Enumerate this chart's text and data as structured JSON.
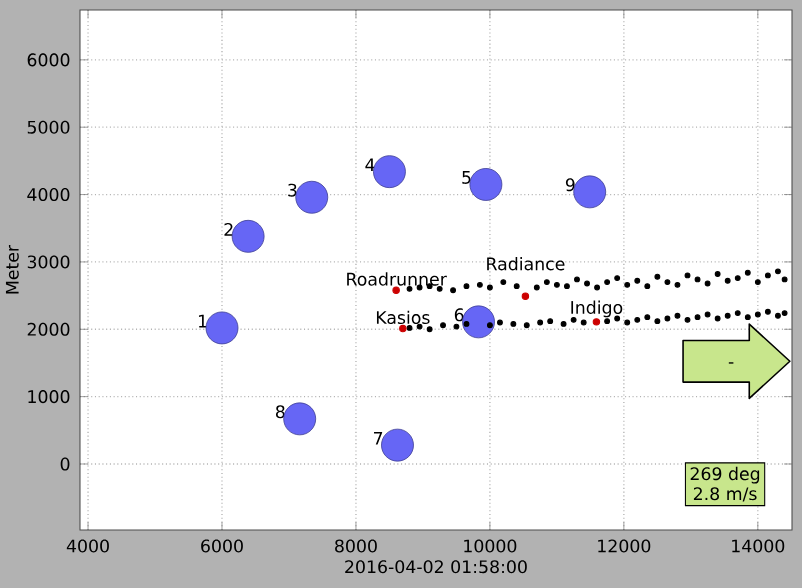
{
  "chart_data": {
    "type": "scatter",
    "xlabel": "2016-04-02 01:58:00",
    "ylabel": "Meter",
    "xlim": [
      3880,
      14510
    ],
    "ylim": [
      -980,
      6740
    ],
    "xticks": [
      4000,
      6000,
      8000,
      10000,
      12000,
      14000
    ],
    "yticks": [
      0,
      1000,
      2000,
      3000,
      4000,
      5000,
      6000
    ],
    "grid": true,
    "marker": "circle",
    "series": [
      {
        "color": "#6666f5",
        "x": [
          6000,
          6390,
          7340,
          8500,
          9940,
          9830,
          8620,
          7160,
          11490
        ],
        "values": [
          2020,
          3380,
          3960,
          4340,
          4150,
          2110,
          280,
          670,
          4040
        ]
      },
      {
        "color": "#000000",
        "x": [
          8800,
          8950,
          9100,
          9250,
          9450,
          9650,
          9850,
          10000,
          10200,
          10400,
          10700,
          10850,
          11000,
          11150,
          11300,
          11450,
          11600,
          11750,
          11900,
          12050,
          12200,
          12350,
          12500,
          12650,
          12800,
          12950,
          13100,
          13250,
          13400,
          13550,
          13700,
          13850,
          14000,
          14150,
          14300,
          14400
        ],
        "values": [
          2600,
          2620,
          2640,
          2600,
          2580,
          2640,
          2660,
          2620,
          2700,
          2640,
          2620,
          2700,
          2660,
          2640,
          2740,
          2680,
          2620,
          2700,
          2760,
          2660,
          2720,
          2640,
          2780,
          2700,
          2660,
          2800,
          2740,
          2680,
          2820,
          2720,
          2760,
          2840,
          2700,
          2800,
          2860,
          2740
        ]
      },
      {
        "color": "#000000",
        "x": [
          8800,
          8950,
          9100,
          9300,
          9500,
          9650,
          10000,
          10150,
          10350,
          10550,
          10750,
          10900,
          11100,
          11250,
          11400,
          11750,
          11900,
          12050,
          12200,
          12350,
          12500,
          12650,
          12800,
          12950,
          13100,
          13250,
          13400,
          13550,
          13700,
          13850,
          14000,
          14150,
          14300,
          14400
        ],
        "values": [
          2020,
          2040,
          2000,
          2060,
          2040,
          2080,
          2060,
          2100,
          2080,
          2060,
          2100,
          2120,
          2080,
          2140,
          2100,
          2120,
          2160,
          2100,
          2140,
          2180,
          2120,
          2160,
          2200,
          2140,
          2180,
          2220,
          2160,
          2200,
          2240,
          2180,
          2220,
          2260,
          2200,
          2240
        ]
      },
      {
        "color": "#cc0000",
        "x": [
          8600,
          10530,
          8700,
          11590
        ],
        "values": [
          2580,
          2490,
          2010,
          2110
        ]
      }
    ],
    "annotations": [
      {
        "text": "1",
        "x": 6000,
        "y": 2020
      },
      {
        "text": "2",
        "x": 6390,
        "y": 3380
      },
      {
        "text": "3",
        "x": 7340,
        "y": 3960
      },
      {
        "text": "4",
        "x": 8500,
        "y": 4340
      },
      {
        "text": "5",
        "x": 9940,
        "y": 4150
      },
      {
        "text": "6",
        "x": 9830,
        "y": 2110
      },
      {
        "text": "7",
        "x": 8620,
        "y": 280
      },
      {
        "text": "8",
        "x": 7160,
        "y": 670
      },
      {
        "text": "9",
        "x": 11490,
        "y": 4040
      },
      {
        "text": "Roadrunner",
        "x": 8600,
        "y": 2580
      },
      {
        "text": "Radiance",
        "x": 10530,
        "y": 2490
      },
      {
        "text": "Kasios",
        "x": 8700,
        "y": 2010
      },
      {
        "text": "Indigo",
        "x": 11590,
        "y": 2110
      },
      "-",
      "269 deg",
      "2.8 m/s"
    ]
  }
}
